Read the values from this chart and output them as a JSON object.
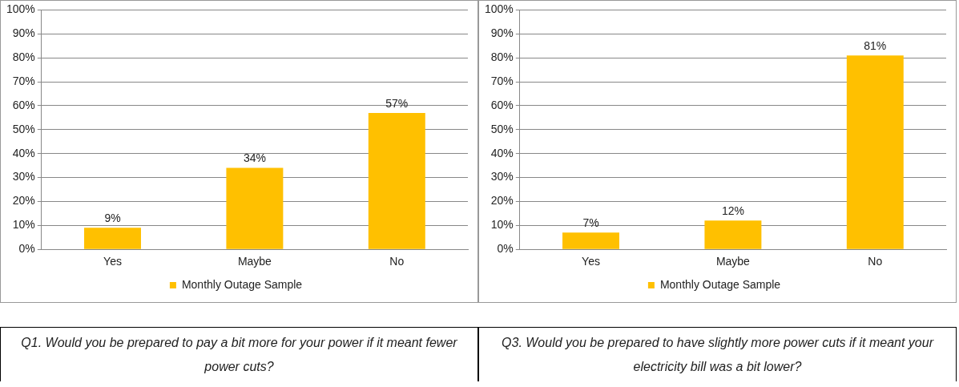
{
  "chart_data": [
    {
      "type": "bar",
      "categories": [
        "Yes",
        "Maybe",
        "No"
      ],
      "series": [
        {
          "name": "Monthly Outage Sample",
          "color": "#ffc000",
          "values": [
            9,
            34,
            57
          ],
          "value_labels": [
            "9%",
            "34%",
            "57%"
          ]
        }
      ],
      "ylim": [
        0,
        100
      ],
      "yticks": [
        {
          "value": 0,
          "label": "0%"
        },
        {
          "value": 10,
          "label": "10%"
        },
        {
          "value": 20,
          "label": "20%"
        },
        {
          "value": 30,
          "label": "30%"
        },
        {
          "value": 40,
          "label": "40%"
        },
        {
          "value": 50,
          "label": "50%"
        },
        {
          "value": 60,
          "label": "60%"
        },
        {
          "value": 70,
          "label": "70%"
        },
        {
          "value": 80,
          "label": "80%"
        },
        {
          "value": 90,
          "label": "90%"
        },
        {
          "value": 100,
          "label": "100%"
        }
      ],
      "grid": "y",
      "legend": "bottom",
      "annotations": [
        "Q1. Would you be prepared to pay a bit more for your power if it meant fewer power cuts?"
      ]
    },
    {
      "type": "bar",
      "categories": [
        "Yes",
        "Maybe",
        "No"
      ],
      "series": [
        {
          "name": "Monthly Outage Sample",
          "color": "#ffc000",
          "values": [
            7,
            12,
            81
          ],
          "value_labels": [
            "7%",
            "12%",
            "81%"
          ]
        }
      ],
      "ylim": [
        0,
        100
      ],
      "yticks": [
        {
          "value": 0,
          "label": "0%"
        },
        {
          "value": 10,
          "label": "10%"
        },
        {
          "value": 20,
          "label": "20%"
        },
        {
          "value": 30,
          "label": "30%"
        },
        {
          "value": 40,
          "label": "40%"
        },
        {
          "value": 50,
          "label": "50%"
        },
        {
          "value": 60,
          "label": "60%"
        },
        {
          "value": 70,
          "label": "70%"
        },
        {
          "value": 80,
          "label": "80%"
        },
        {
          "value": 90,
          "label": "90%"
        },
        {
          "value": 100,
          "label": "100%"
        }
      ],
      "grid": "y",
      "legend": "bottom",
      "annotations": [
        "Q3. Would you be prepared to have slightly more power cuts if it meant your electricity bill was a bit lower?"
      ]
    }
  ]
}
